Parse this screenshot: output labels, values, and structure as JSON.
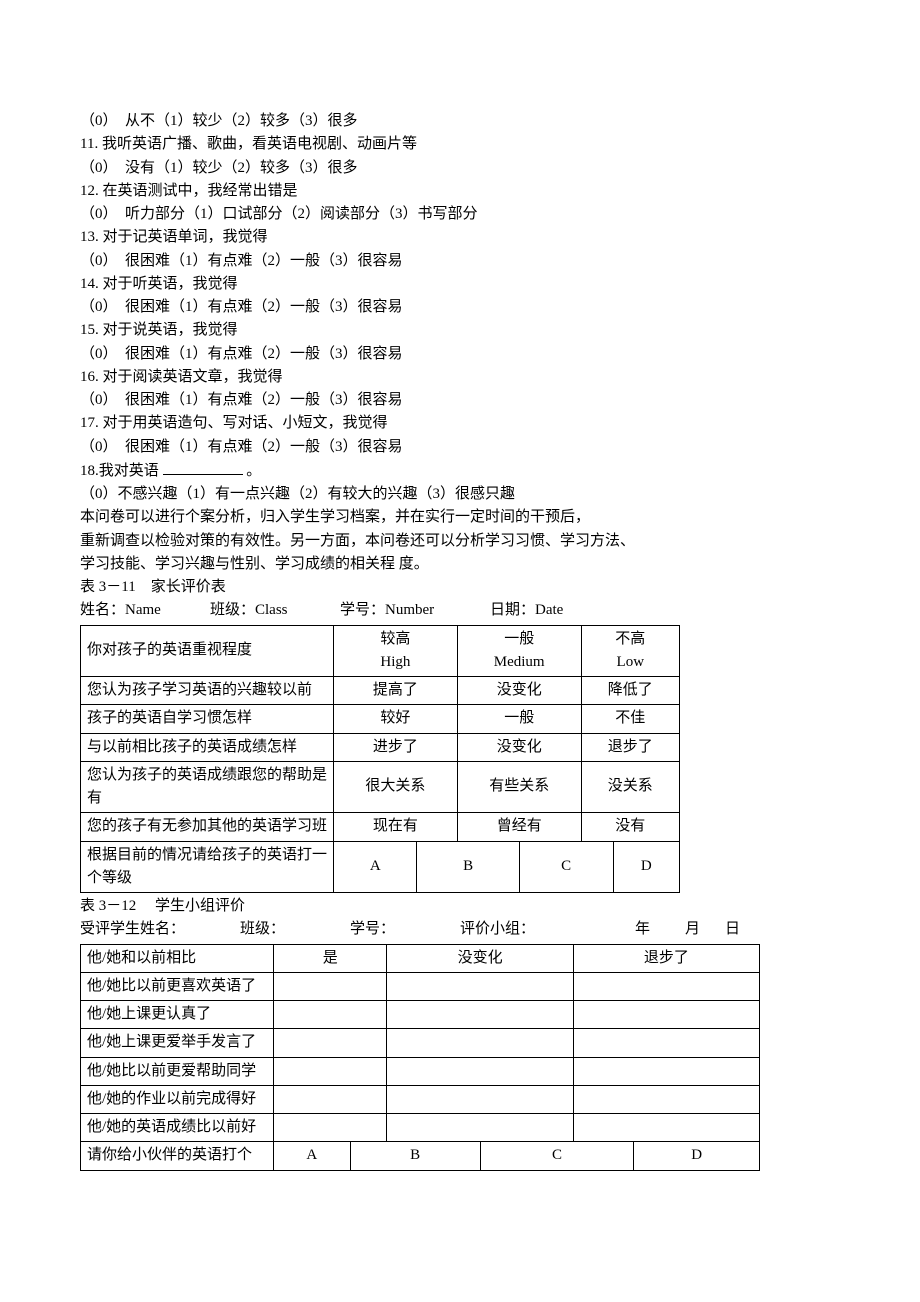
{
  "questions": [
    {
      "n": "",
      "options": "（0）　从不（1）较少（2）较多（3）很多"
    },
    {
      "n": "11.",
      "text": "我听英语广播、歌曲，看英语电视剧、动画片等",
      "options": "（0）　没有（1）较少（2）较多（3）很多"
    },
    {
      "n": "12.",
      "text": "在英语测试中，我经常出错是",
      "options": "（0）　听力部分（1）口试部分（2）阅读部分（3）书写部分"
    },
    {
      "n": "13.",
      "text": "对于记英语单词，我觉得",
      "options": "（0）　很困难（1）有点难（2）一般（3）很容易"
    },
    {
      "n": "14.",
      "text": "对于听英语，我觉得",
      "options": "（0）　很困难（1）有点难（2）一般（3）很容易"
    },
    {
      "n": "15.",
      "text": "对于说英语，我觉得",
      "options": "（0）　很困难（1）有点难（2）一般（3）很容易"
    },
    {
      "n": "16.",
      "text": "对于阅读英语文章，我觉得",
      "options": "（0）　很困难（1）有点难（2）一般（3）很容易"
    },
    {
      "n": "17.",
      "text": "对于用英语造句、写对话、小短文，我觉得",
      "options": "（0）　很困难（1）有点难（2）一般（3）很容易"
    }
  ],
  "q18_pre": "18.我对英语",
  "q18_post": "。",
  "q18_opts": "（0）不感兴趣（1）有一点兴趣（2）有较大的兴趣（3）很感只趣",
  "para": [
    "本问卷可以进行个案分析，归入学生学习档案，并在实行一定时间的干预后，",
    "重新调查以检验对策的有效性。另一方面，本问卷还可以分析学习习惯、学习方法、",
    "学习技能、学习兴趣与性别、学习成绩的相关程 度。"
  ],
  "table1_title": "表 3－11　家长评价表",
  "table1_header": {
    "l1": "姓名：Name",
    "l2": "班级：Class",
    "l3": "学号：Number",
    "l4": "日期：Date"
  },
  "table1_rows": [
    {
      "q": "你对孩子的英语重视程度",
      "a": "较高",
      "a2": "High",
      "b": "一般",
      "b2": "Medium",
      "c": "不高",
      "c2": "Low",
      "two": true,
      "cols": 3
    },
    {
      "q": "您认为孩子学习英语的兴趣较以前",
      "a": "提高了",
      "b": "没变化",
      "c": "降低了",
      "cols": 3
    },
    {
      "q": "孩子的英语自学习惯怎样",
      "a": "较好",
      "b": "一般",
      "c": "不佳",
      "cols": 3
    },
    {
      "q": "与以前相比孩子的英语成绩怎样",
      "a": "进步了",
      "b": "没变化",
      "c": "退步了",
      "cols": 3
    },
    {
      "q": "您认为孩子的英语成绩跟您的帮助是有",
      "a": "很大关系",
      "b": "有些关系",
      "c": "没关系",
      "cols": 3
    },
    {
      "q": "您的孩子有无参加其他的英语学习班",
      "a": "现在有",
      "b": "曾经有",
      "c": "没有",
      "cols": 3
    },
    {
      "q": "根据目前的情况请给孩子的英语打一个等级",
      "a": "A",
      "b": "B",
      "c": "C",
      "d": "D",
      "cols": 4
    }
  ],
  "table2_title": "表 3－12　 学生小组评价",
  "table2_header": {
    "l1": "受评学生姓名：",
    "l2": "班级：",
    "l3": "学号：",
    "l4": "评价小组：",
    "l5": "年",
    "l6": "月",
    "l7": "日"
  },
  "table2_head": [
    "他/她和以前相比",
    "是",
    "没变化",
    "退步了"
  ],
  "table2_rows": [
    "他/她比以前更喜欢英语了",
    "他/她上课更认真了",
    "他/她上课更爱举手发言了",
    "他/她比以前更爱帮助同学",
    "他/她的作业以前完成得好",
    "他/她的英语成绩比以前好"
  ],
  "table2_last": {
    "q": "请你给小伙伴的英语打个",
    "a": "A",
    "b": "B",
    "c": "C",
    "d": "D"
  }
}
